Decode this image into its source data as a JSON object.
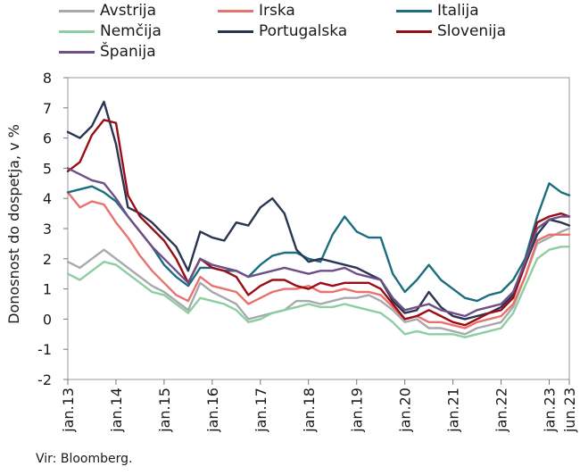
{
  "chart_data": {
    "type": "line",
    "title": "",
    "xlabel": "",
    "ylabel": "Donosnost do dospetja, v %",
    "ylim": [
      -2,
      8
    ],
    "yticks": [
      "8",
      "7",
      "6",
      "5",
      "4",
      "3",
      "2",
      "1",
      "0",
      "-1",
      "-2"
    ],
    "xticks": [
      "jan.13",
      "jan.14",
      "jan.15",
      "jan.16",
      "jan.17",
      "jan.18",
      "jan.19",
      "jan.20",
      "jan.21",
      "jan.22",
      "jan.23",
      "jun.23"
    ],
    "x_months": [
      0,
      3,
      6,
      9,
      12,
      15,
      18,
      21,
      24,
      27,
      30,
      33,
      36,
      39,
      42,
      45,
      48,
      51,
      54,
      57,
      60,
      63,
      66,
      69,
      72,
      75,
      78,
      81,
      84,
      87,
      90,
      93,
      96,
      99,
      102,
      105,
      108,
      111,
      114,
      117,
      120,
      123,
      125
    ],
    "series": [
      {
        "name": "Avstrija",
        "color": "#a7a9ac",
        "values": [
          1.9,
          1.7,
          2.0,
          2.3,
          2.0,
          1.7,
          1.4,
          1.1,
          0.9,
          0.6,
          0.3,
          1.2,
          0.9,
          0.7,
          0.5,
          0.0,
          0.1,
          0.2,
          0.3,
          0.6,
          0.6,
          0.5,
          0.6,
          0.7,
          0.7,
          0.8,
          0.6,
          0.3,
          -0.1,
          0.0,
          -0.3,
          -0.3,
          -0.4,
          -0.5,
          -0.3,
          -0.2,
          -0.1,
          0.4,
          1.4,
          2.5,
          2.7,
          2.9,
          3.0
        ]
      },
      {
        "name": "Irska",
        "color": "#e8726d",
        "values": [
          4.2,
          3.7,
          3.9,
          3.8,
          3.2,
          2.7,
          2.1,
          1.6,
          1.2,
          0.8,
          0.6,
          1.4,
          1.1,
          1.0,
          0.9,
          0.5,
          0.7,
          0.9,
          1.0,
          1.0,
          1.1,
          0.9,
          0.9,
          1.0,
          0.9,
          0.9,
          0.8,
          0.4,
          0.0,
          0.1,
          -0.1,
          -0.1,
          -0.2,
          -0.3,
          -0.1,
          0.0,
          0.1,
          0.5,
          1.4,
          2.6,
          2.8,
          2.8,
          2.8
        ]
      },
      {
        "name": "Italija",
        "color": "#1b6e80",
        "values": [
          4.2,
          4.3,
          4.4,
          4.2,
          3.9,
          3.4,
          2.9,
          2.4,
          1.8,
          1.4,
          1.1,
          1.7,
          1.7,
          1.6,
          1.6,
          1.4,
          1.8,
          2.1,
          2.2,
          2.2,
          2.0,
          1.9,
          2.8,
          3.4,
          2.9,
          2.7,
          2.7,
          1.5,
          0.9,
          1.3,
          1.8,
          1.3,
          1.0,
          0.7,
          0.6,
          0.8,
          0.9,
          1.3,
          2.0,
          3.4,
          4.5,
          4.2,
          4.1
        ]
      },
      {
        "name": "Nemčija",
        "color": "#8ccda1",
        "values": [
          1.5,
          1.3,
          1.6,
          1.9,
          1.8,
          1.5,
          1.2,
          0.9,
          0.8,
          0.5,
          0.2,
          0.7,
          0.6,
          0.5,
          0.3,
          -0.1,
          0.0,
          0.2,
          0.3,
          0.4,
          0.5,
          0.4,
          0.4,
          0.5,
          0.4,
          0.3,
          0.2,
          -0.1,
          -0.5,
          -0.4,
          -0.5,
          -0.5,
          -0.5,
          -0.6,
          -0.5,
          -0.4,
          -0.3,
          0.2,
          1.1,
          2.0,
          2.3,
          2.4,
          2.4
        ]
      },
      {
        "name": "Portugalska",
        "color": "#2b3553",
        "values": [
          6.2,
          6.0,
          6.4,
          7.2,
          5.8,
          3.7,
          3.5,
          3.2,
          2.8,
          2.4,
          1.6,
          2.9,
          2.7,
          2.6,
          3.2,
          3.1,
          3.7,
          4.0,
          3.5,
          2.3,
          1.9,
          2.0,
          1.9,
          1.8,
          1.7,
          1.5,
          1.3,
          0.6,
          0.2,
          0.3,
          0.9,
          0.4,
          0.1,
          0.0,
          0.1,
          0.2,
          0.4,
          0.8,
          1.8,
          2.8,
          3.3,
          3.2,
          3.1
        ]
      },
      {
        "name": "Slovenija",
        "color": "#9b0d14",
        "values": [
          4.9,
          5.2,
          6.1,
          6.6,
          6.5,
          4.1,
          3.4,
          3.0,
          2.6,
          2.0,
          1.2,
          2.0,
          1.7,
          1.6,
          1.4,
          0.8,
          1.1,
          1.3,
          1.3,
          1.1,
          1.0,
          1.2,
          1.1,
          1.2,
          1.2,
          1.2,
          1.0,
          0.5,
          0.0,
          0.1,
          0.3,
          0.1,
          -0.1,
          -0.2,
          0.0,
          0.2,
          0.3,
          0.7,
          1.8,
          3.2,
          3.4,
          3.5,
          3.4
        ]
      },
      {
        "name": "Španija",
        "color": "#6e4f86",
        "values": [
          5.0,
          4.8,
          4.6,
          4.5,
          4.0,
          3.4,
          2.9,
          2.4,
          2.0,
          1.6,
          1.2,
          2.0,
          1.8,
          1.7,
          1.6,
          1.4,
          1.5,
          1.6,
          1.7,
          1.6,
          1.5,
          1.6,
          1.6,
          1.7,
          1.5,
          1.4,
          1.3,
          0.7,
          0.3,
          0.4,
          0.5,
          0.3,
          0.2,
          0.1,
          0.3,
          0.4,
          0.5,
          0.9,
          1.9,
          3.0,
          3.3,
          3.4,
          3.4
        ]
      }
    ],
    "legend_position": "top",
    "grid": false
  },
  "source_note": "Vir: Bloomberg."
}
